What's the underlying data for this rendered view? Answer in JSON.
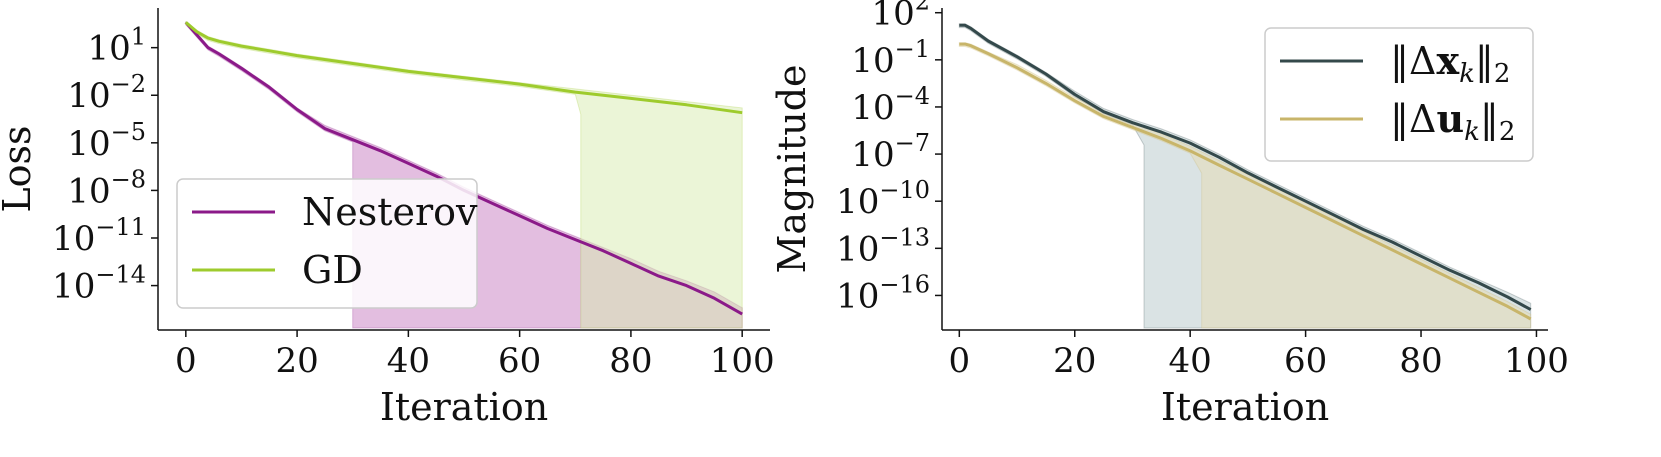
{
  "chart_data": [
    {
      "type": "line",
      "title": "",
      "xlabel": "Iteration",
      "ylabel": "Loss",
      "xlim": [
        -5,
        105
      ],
      "ylim_log10": [
        -16.8,
        3.5
      ],
      "y_scale": "log",
      "x_ticks": [
        0,
        20,
        40,
        60,
        80,
        100
      ],
      "x_tick_labels": [
        "0",
        "20",
        "40",
        "60",
        "80",
        "100"
      ],
      "y_ticks": [
        1,
        -2,
        -5,
        -8,
        -11,
        -14
      ],
      "y_tick_labels": [
        {
          "base": "10",
          "exp": "1"
        },
        {
          "base": "10",
          "exp": "−2"
        },
        {
          "base": "10",
          "exp": "−5"
        },
        {
          "base": "10",
          "exp": "−8"
        },
        {
          "base": "10",
          "exp": "−11"
        },
        {
          "base": "10",
          "exp": "−14"
        }
      ],
      "grid": false,
      "legend_position": "lower-left",
      "series": [
        {
          "name": "Nesterov",
          "color": "#8b1a89",
          "band_color": "#c77ec2",
          "x": [
            0,
            2,
            4,
            6,
            10,
            15,
            20,
            25,
            30,
            35,
            40,
            45,
            50,
            55,
            60,
            65,
            70,
            75,
            80,
            85,
            90,
            95,
            100
          ],
          "log10_y": [
            2.6,
            1.8,
            1.0,
            0.6,
            -0.3,
            -1.5,
            -2.9,
            -4.1,
            -4.8,
            -5.5,
            -6.3,
            -7.1,
            -8.0,
            -8.8,
            -9.6,
            -10.4,
            -11.1,
            -11.8,
            -12.6,
            -13.4,
            -14.0,
            -14.8,
            -15.8
          ],
          "band_upper_log10": [
            2.6,
            1.9,
            1.1,
            0.7,
            -0.2,
            -1.4,
            -2.8,
            -3.9,
            -4.6,
            -5.3,
            -6.1,
            -6.9,
            -7.8,
            -8.6,
            -9.4,
            -10.2,
            -10.9,
            -11.6,
            -12.3,
            -13.1,
            -13.7,
            -14.4,
            -15.4
          ],
          "band_lower_start": 30
        },
        {
          "name": "GD",
          "color": "#9ecb2d",
          "band_color": "#d8ebb0",
          "x": [
            0,
            2,
            4,
            6,
            10,
            15,
            20,
            30,
            40,
            50,
            60,
            70,
            80,
            90,
            100
          ],
          "log10_y": [
            2.6,
            2.0,
            1.6,
            1.4,
            1.1,
            0.8,
            0.5,
            0.0,
            -0.5,
            -0.9,
            -1.3,
            -1.8,
            -2.2,
            -2.6,
            -3.1
          ],
          "band_upper_log10": [
            2.6,
            2.1,
            1.7,
            1.5,
            1.2,
            0.9,
            0.6,
            0.1,
            -0.4,
            -0.8,
            -1.2,
            -1.6,
            -2.0,
            -2.4,
            -2.8
          ],
          "band_lower_start": 71
        }
      ]
    },
    {
      "type": "line",
      "title": "",
      "xlabel": "Iteration",
      "ylabel": "Magnitude",
      "xlim": [
        -3,
        102
      ],
      "ylim_log10": [
        -18.2,
        2.3
      ],
      "y_scale": "log",
      "x_ticks": [
        0,
        20,
        40,
        60,
        80,
        100
      ],
      "x_tick_labels": [
        "0",
        "20",
        "40",
        "60",
        "80",
        "100"
      ],
      "y_ticks": [
        2,
        -1,
        -4,
        -7,
        -10,
        -13,
        -16
      ],
      "y_tick_labels": [
        {
          "base": "10",
          "exp": "2"
        },
        {
          "base": "10",
          "exp": "−1"
        },
        {
          "base": "10",
          "exp": "−4"
        },
        {
          "base": "10",
          "exp": "−7"
        },
        {
          "base": "10",
          "exp": "−10"
        },
        {
          "base": "10",
          "exp": "−13"
        },
        {
          "base": "10",
          "exp": "−16"
        }
      ],
      "grid": false,
      "legend_position": "top-right",
      "series": [
        {
          "name": "‖Δx_k‖₂",
          "legend_parts": {
            "sym": "Δ",
            "var": "x",
            "sub": "k",
            "norm": "2"
          },
          "color": "#34494b",
          "band_color": "#b6c8c9",
          "x": [
            0,
            1,
            2,
            5,
            10,
            15,
            20,
            25,
            30,
            35,
            40,
            45,
            50,
            55,
            60,
            65,
            70,
            75,
            80,
            85,
            90,
            95,
            99
          ],
          "log10_y": [
            1.2,
            1.2,
            1.0,
            0.2,
            -0.8,
            -1.9,
            -3.2,
            -4.3,
            -5.0,
            -5.6,
            -6.3,
            -7.2,
            -8.2,
            -9.1,
            -10.0,
            -10.9,
            -11.8,
            -12.6,
            -13.5,
            -14.4,
            -15.2,
            -16.1,
            -16.9
          ],
          "band_upper_log10": [
            1.3,
            1.3,
            1.1,
            0.3,
            -0.7,
            -1.8,
            -3.0,
            -4.1,
            -4.8,
            -5.4,
            -6.1,
            -7.0,
            -8.0,
            -8.9,
            -9.8,
            -10.7,
            -11.6,
            -12.4,
            -13.3,
            -14.2,
            -15.0,
            -15.8,
            -16.5
          ],
          "band_lower_start": 32
        },
        {
          "name": "‖Δu_k‖₂",
          "legend_parts": {
            "sym": "Δ",
            "var": "u",
            "sub": "k",
            "norm": "2"
          },
          "color": "#c8b56a",
          "band_color": "#e6dcb2",
          "x": [
            0,
            1,
            2,
            5,
            10,
            15,
            20,
            25,
            30,
            35,
            40,
            45,
            50,
            55,
            60,
            65,
            70,
            75,
            80,
            85,
            90,
            95,
            99
          ],
          "log10_y": [
            0.0,
            0.0,
            -0.1,
            -0.6,
            -1.5,
            -2.5,
            -3.6,
            -4.6,
            -5.3,
            -6.0,
            -6.8,
            -7.7,
            -8.6,
            -9.5,
            -10.4,
            -11.3,
            -12.2,
            -13.1,
            -14.0,
            -14.9,
            -15.8,
            -16.7,
            -17.5
          ],
          "band_upper_log10": [
            0.1,
            0.1,
            0.0,
            -0.5,
            -1.3,
            -2.3,
            -3.4,
            -4.3,
            -5.0,
            -5.7,
            -6.5,
            -7.4,
            -8.3,
            -9.2,
            -10.1,
            -11.0,
            -11.9,
            -12.8,
            -13.7,
            -14.6,
            -15.5,
            -16.4,
            -17.2
          ],
          "band_lower_start": 42
        }
      ]
    }
  ]
}
